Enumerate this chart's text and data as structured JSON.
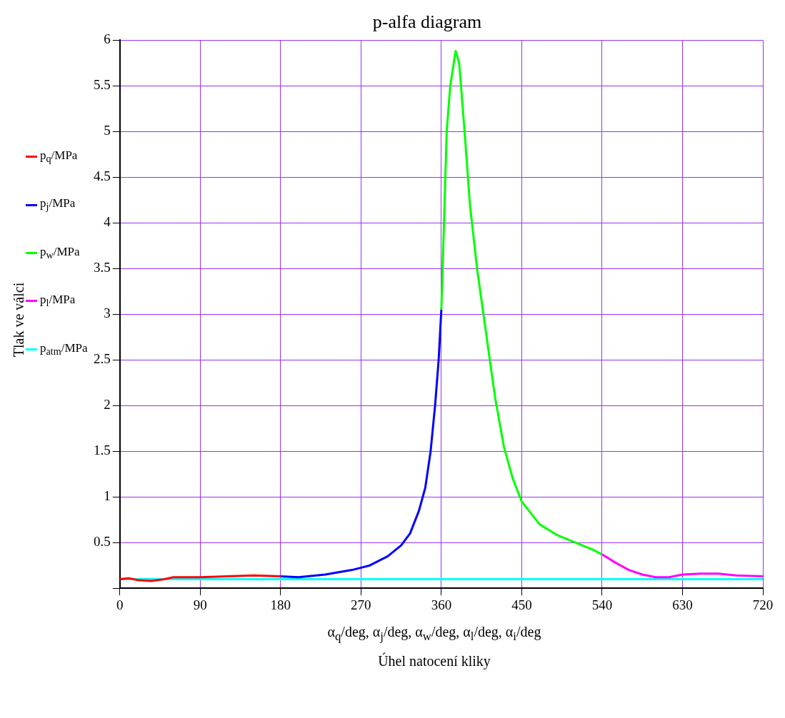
{
  "chart_data": {
    "type": "line",
    "title": "p-alfa diagram",
    "xlabel": "α$_{q}$/deg, α$_{j}$/deg, α$_{w}$/deg, α$_{l}$/deg, α$_{i}$/deg\nÚhel natocení kliky",
    "ylabel": "Tlak ve válci",
    "xlim": [
      0,
      720
    ],
    "xticks": [
      0,
      90,
      180,
      270,
      360,
      450,
      540,
      630,
      720
    ],
    "ylim": [
      0,
      6
    ],
    "yticks": [
      {
        "value": 0,
        "label": null
      },
      0.5,
      1,
      1.5,
      2,
      2.5,
      3,
      3.5,
      4,
      4.5,
      5,
      5.5,
      6
    ],
    "grid": true,
    "legend": "left",
    "series": [
      {
        "name": "p$_{q}$/MPa",
        "color": "#ff0000",
        "x": [
          0,
          10,
          20,
          35,
          50,
          60,
          90,
          120,
          150,
          180
        ],
        "values": [
          0.1,
          0.11,
          0.09,
          0.08,
          0.1,
          0.12,
          0.12,
          0.13,
          0.14,
          0.13
        ]
      },
      {
        "name": "p$_{j}$/MPa",
        "color": "#0000ff",
        "x": [
          180,
          200,
          230,
          260,
          280,
          300,
          315,
          325,
          335,
          342,
          348,
          353,
          357,
          360
        ],
        "values": [
          0.13,
          0.12,
          0.15,
          0.2,
          0.25,
          0.35,
          0.47,
          0.6,
          0.85,
          1.1,
          1.5,
          2,
          2.5,
          3.05
        ]
      },
      {
        "name": "p$_{w}$/MPa",
        "color": "#00ff00",
        "x": [
          360,
          363,
          366,
          370,
          376,
          380,
          386,
          392,
          400,
          410,
          420,
          430,
          440,
          450,
          470,
          490,
          510,
          530,
          540
        ],
        "values": [
          3.05,
          4,
          5,
          5.5,
          5.88,
          5.75,
          5,
          4.2,
          3.5,
          2.8,
          2.1,
          1.55,
          1.2,
          0.95,
          0.7,
          0.58,
          0.5,
          0.42,
          0.37
        ]
      },
      {
        "name": "p$_{l}$/MPa",
        "color": "#ff00ff",
        "x": [
          540,
          555,
          570,
          585,
          600,
          615,
          630,
          650,
          670,
          690,
          720
        ],
        "values": [
          0.37,
          0.28,
          0.2,
          0.15,
          0.12,
          0.12,
          0.15,
          0.16,
          0.16,
          0.14,
          0.13
        ]
      },
      {
        "name": "p$_{atm}$/MPa",
        "color": "#00ffff",
        "x": [
          0,
          720
        ],
        "values": [
          0.1,
          0.1
        ]
      }
    ]
  }
}
